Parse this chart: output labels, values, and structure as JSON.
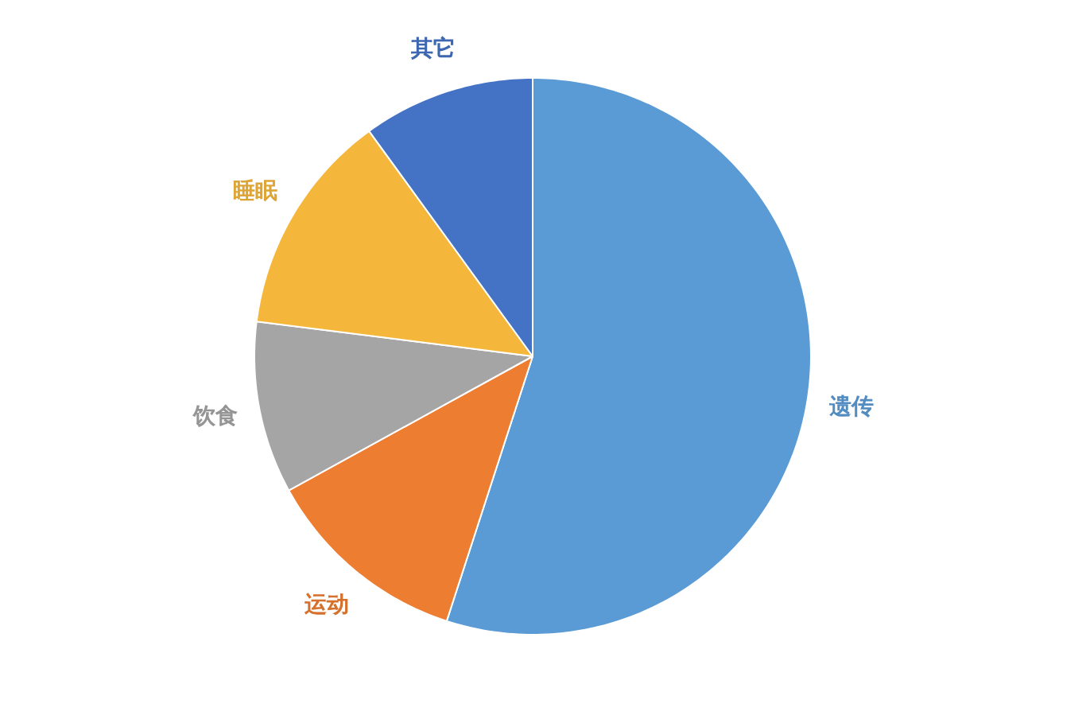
{
  "chart_data": {
    "type": "pie",
    "categories": [
      "遗传",
      "运动",
      "饮食",
      "睡眠",
      "其它"
    ],
    "values": [
      55,
      12,
      10,
      13,
      10
    ],
    "colors": [
      "#5b9bd5",
      "#ed7d31",
      "#a5a5a5",
      "#f5b73b",
      "#4472c4"
    ]
  }
}
